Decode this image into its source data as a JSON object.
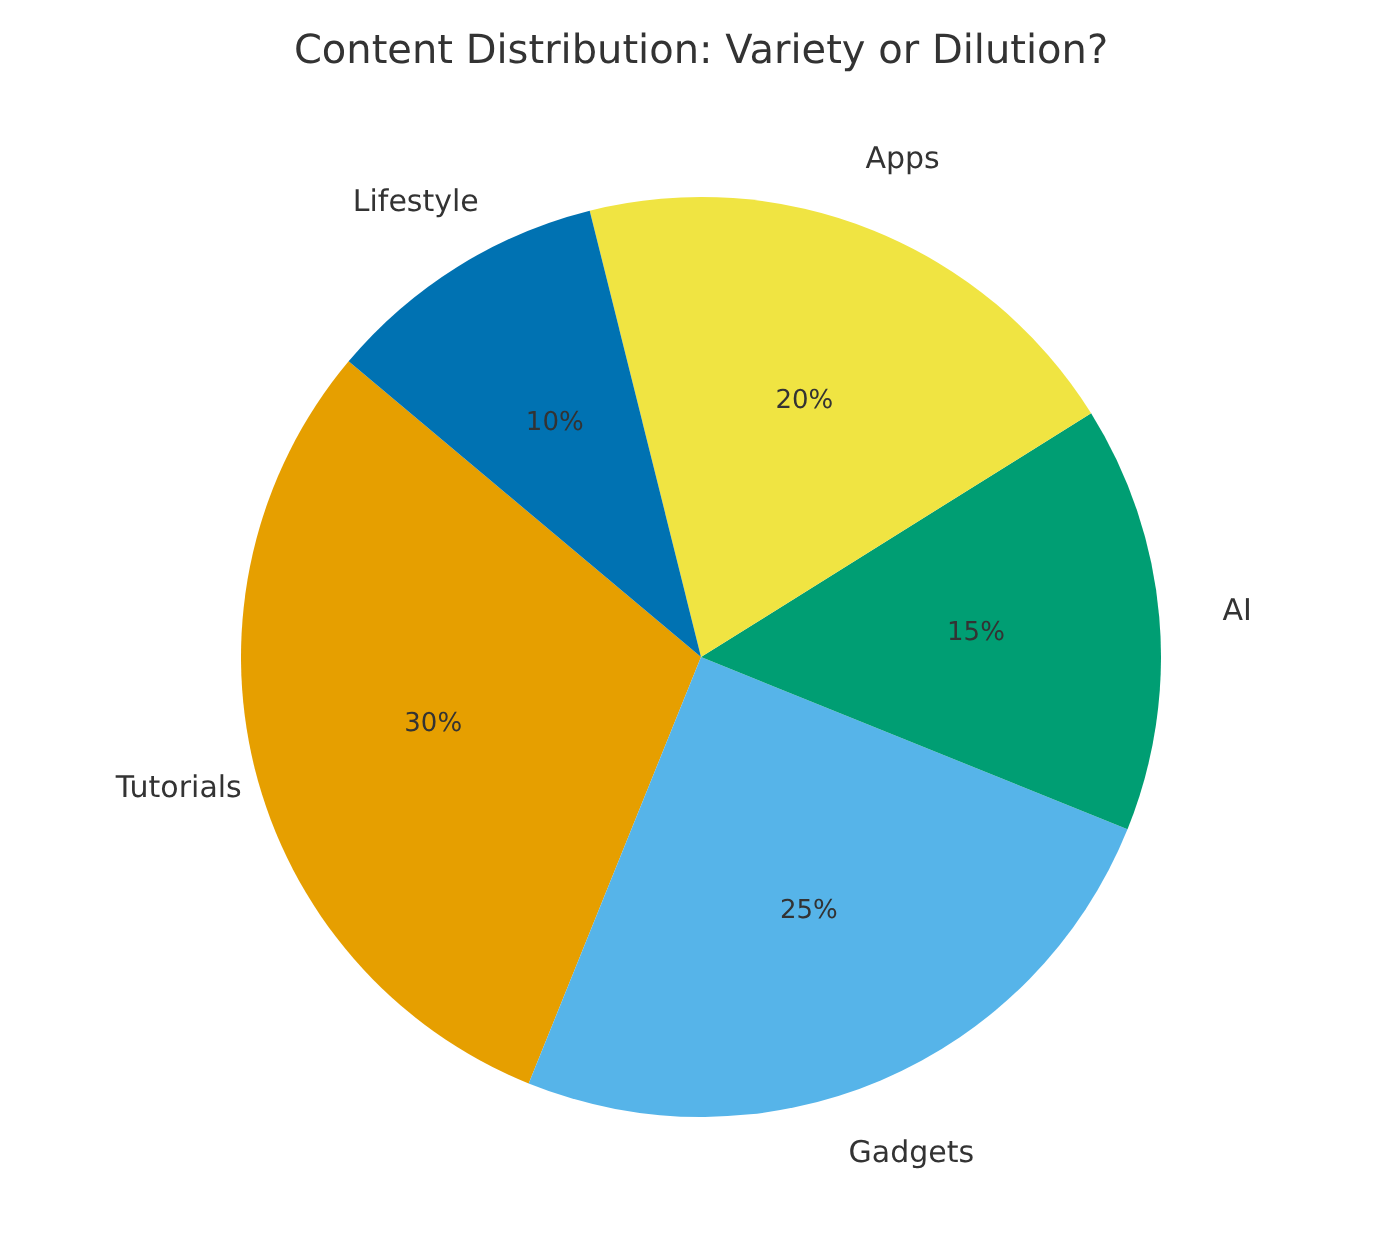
{
  "chart_data": {
    "type": "pie",
    "title": "Content Distribution: Variety or Dilution?",
    "categories": [
      "Tutorials",
      "Gadgets",
      "AI",
      "Apps",
      "Lifestyle"
    ],
    "values": [
      30,
      25,
      15,
      20,
      10
    ],
    "colors": [
      "#e69f00",
      "#56b4e9",
      "#009e73",
      "#f0e442",
      "#0072b2"
    ],
    "value_labels": [
      "30%",
      "25%",
      "15%",
      "20%",
      "10%"
    ]
  }
}
